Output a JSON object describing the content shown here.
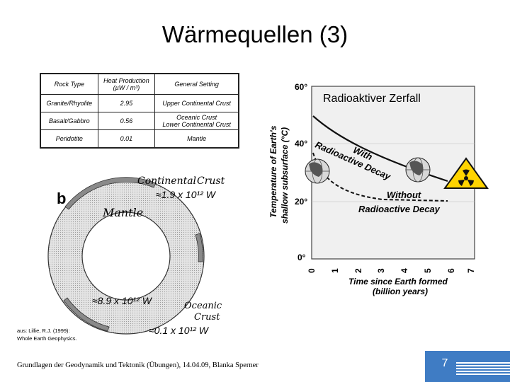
{
  "title": "Wärmequellen (3)",
  "table": {
    "headers": [
      "Rock Type",
      "Heat Production",
      "(µW / m³)",
      "General Setting"
    ],
    "rows": [
      {
        "rock": "Granite/Rhyolite",
        "value": "2.95",
        "setting": "Upper Continental Crust",
        "setting2": ""
      },
      {
        "rock": "Basalt/Gabbro",
        "value": "0.56",
        "setting": "Oceanic Crust",
        "setting2": "Lower Continental Crust"
      },
      {
        "rock": "Peridotite",
        "value": "0.01",
        "setting": "Mantle",
        "setting2": ""
      }
    ]
  },
  "diagram": {
    "label": "b",
    "mantle": "Mantle",
    "continental": {
      "line1": "Continental",
      "line2": "Crust",
      "value": "≈1.9 x 10¹² W"
    },
    "inner_value": "≈8.9 x 10¹² W",
    "oceanic": {
      "line1": "Oceanic",
      "line2": "Crust",
      "value": "≈0.1 x 10¹² W"
    }
  },
  "source": {
    "line1": "aus: Lillie, R.J. (1999):",
    "line2": "Whole Earth Geophysics."
  },
  "graph": {
    "title": "Radioaktiver Zerfall",
    "ylabel_line1": "Temperature of Earth's",
    "ylabel_line2": "shallow subsurface (°C)",
    "xlabel_line1": "Time since Earth formed",
    "xlabel_line2": "(billion years)",
    "yticks": [
      "0°",
      "20°",
      "40°",
      "60°"
    ],
    "xticks": [
      "0",
      "1",
      "2",
      "3",
      "4",
      "5",
      "6",
      "7"
    ],
    "with_line1": "With",
    "with_line2": "Radioactive Decay",
    "without_line1": "Without",
    "without_line2": "Radioactive Decay"
  },
  "footer": "Grundlagen der Geodynamik und Tektonik (Übungen), 14.04.09, Blanka Sperner",
  "page_number": "7",
  "colors": {
    "accent": "#3f7cc4",
    "curve": "#111111",
    "grid": "#bbbbbb"
  }
}
